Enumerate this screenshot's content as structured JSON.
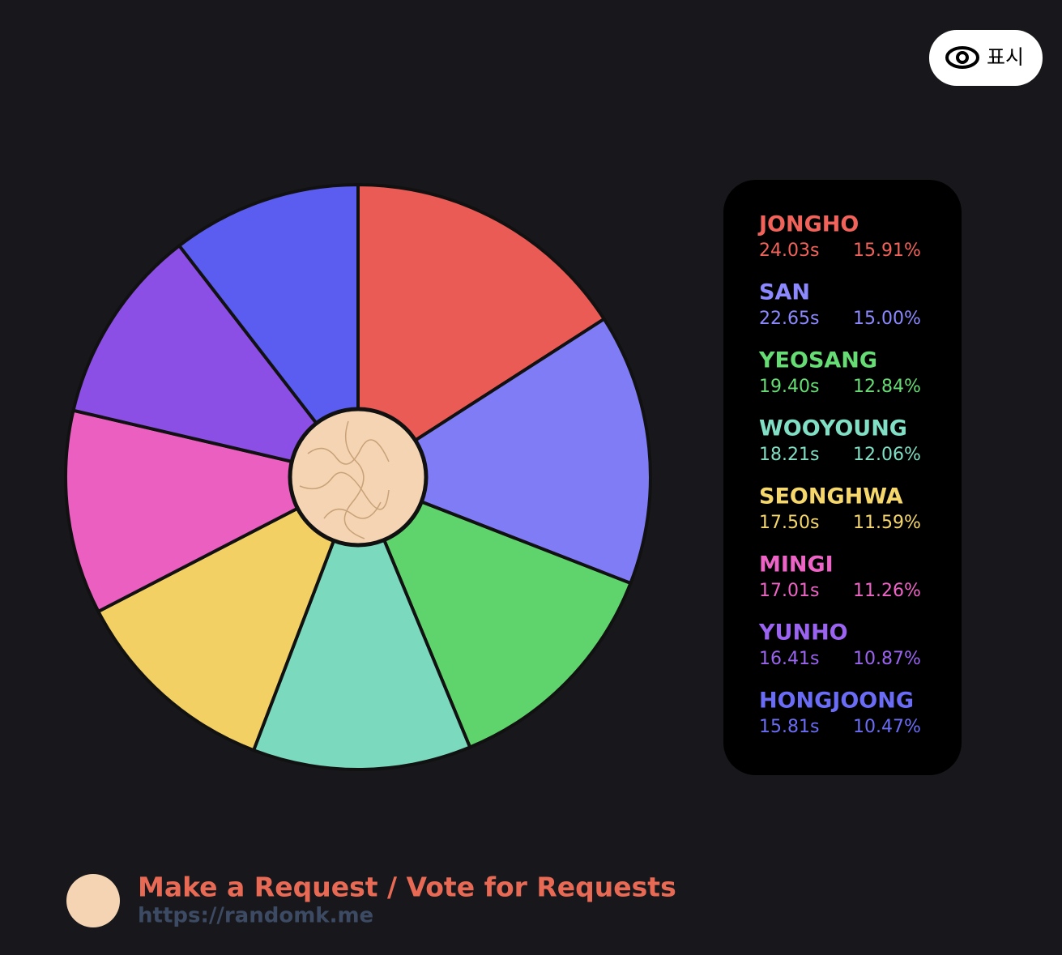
{
  "chart_data": {
    "type": "pie",
    "categories": [
      "JONGHO",
      "SAN",
      "YEOSANG",
      "WOOYOUNG",
      "SEONGHWA",
      "MINGI",
      "YUNHO",
      "HONGJOONG"
    ],
    "values": [
      15.91,
      15.0,
      12.84,
      12.06,
      11.59,
      11.26,
      10.87,
      10.47
    ],
    "value_labels": [
      "15.91%",
      "15.00%",
      "12.84%",
      "12.06%",
      "11.59%",
      "11.26%",
      "10.87%",
      "10.47%"
    ],
    "seconds": [
      {
        "value": 24.03,
        "label": "24.03s"
      },
      {
        "value": 22.65,
        "label": "22.65s"
      },
      {
        "value": 19.4,
        "label": "19.40s"
      },
      {
        "value": 18.21,
        "label": "18.21s"
      },
      {
        "value": 17.5,
        "label": "17.50s"
      },
      {
        "value": 17.01,
        "label": "17.01s"
      },
      {
        "value": 16.41,
        "label": "16.41s"
      },
      {
        "value": 15.81,
        "label": "15.81s"
      }
    ],
    "colors": [
      "#ea5b55",
      "#7f7cf5",
      "#5fd46d",
      "#7bd9be",
      "#f2d063",
      "#ea5fc0",
      "#8b4fe6",
      "#5b5cf0"
    ],
    "label_colors": [
      "#f0625a",
      "#8c89ff",
      "#66dc74",
      "#80dfc4",
      "#f5d76c",
      "#ee64c6",
      "#9a63f0",
      "#6b6cf5"
    ]
  },
  "ui": {
    "show_button": "표시"
  },
  "footer": {
    "request": "Make a Request / Vote for Requests",
    "url": "https://randomk.me"
  }
}
